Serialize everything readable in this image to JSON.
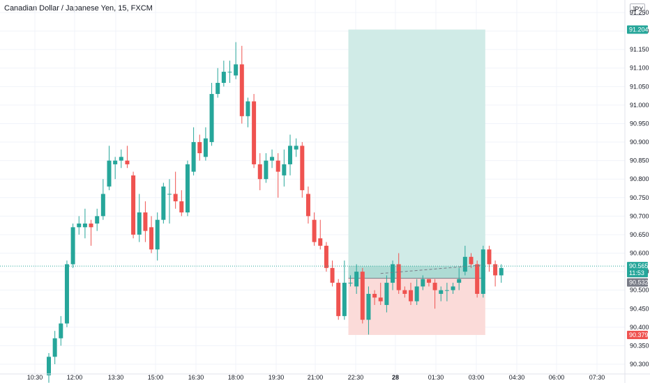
{
  "header": {
    "title": "Canadian Dollar / Japanese Yen, 15, FXCM",
    "currency": "JPY"
  },
  "colors": {
    "up": "#26a69a",
    "down": "#ef5350",
    "profit_zone": "#cdeae6",
    "loss_zone": "#fbd9d7",
    "current_price": "#26a69a",
    "axis_text": "#131722"
  },
  "chart_data": {
    "type": "candlestick",
    "title": "Canadian Dollar / Japanese Yen, 15, FXCM",
    "xlabel": "",
    "ylabel": "",
    "ylim": [
      90.285,
      91.27
    ],
    "y_ticks": [
      "90.300",
      "90.350",
      "90.400",
      "90.450",
      "90.500",
      "90.550",
      "90.600",
      "90.650",
      "90.700",
      "90.750",
      "90.800",
      "90.850",
      "90.900",
      "90.950",
      "91.000",
      "91.050",
      "91.100",
      "91.150",
      "91.200",
      "91.250"
    ],
    "x_tick_labels": [
      "10:30",
      "12:00",
      "13:30",
      "15:00",
      "16:30",
      "18:00",
      "19:30",
      "21:00",
      "22:30",
      "28",
      "01:30",
      "03:00",
      "04:30",
      "06:00",
      "07:30"
    ],
    "grid": true,
    "candles": [
      {
        "o": 90.27,
        "h": 90.33,
        "l": 90.25,
        "c": 90.32
      },
      {
        "o": 90.32,
        "h": 90.39,
        "l": 90.3,
        "c": 90.37
      },
      {
        "o": 90.37,
        "h": 90.43,
        "l": 90.35,
        "c": 90.41
      },
      {
        "o": 90.41,
        "h": 90.58,
        "l": 90.4,
        "c": 90.57
      },
      {
        "o": 90.57,
        "h": 90.68,
        "l": 90.56,
        "c": 90.67
      },
      {
        "o": 90.67,
        "h": 90.7,
        "l": 90.65,
        "c": 90.68
      },
      {
        "o": 90.67,
        "h": 90.72,
        "l": 90.64,
        "c": 90.68
      },
      {
        "o": 90.68,
        "h": 90.69,
        "l": 90.62,
        "c": 90.67
      },
      {
        "o": 90.68,
        "h": 90.72,
        "l": 90.66,
        "c": 90.7
      },
      {
        "o": 90.7,
        "h": 90.8,
        "l": 90.69,
        "c": 90.76
      },
      {
        "o": 90.78,
        "h": 90.89,
        "l": 90.77,
        "c": 90.85
      },
      {
        "o": 90.84,
        "h": 90.86,
        "l": 90.8,
        "c": 90.85
      },
      {
        "o": 90.85,
        "h": 90.88,
        "l": 90.83,
        "c": 90.86
      },
      {
        "o": 90.85,
        "h": 90.89,
        "l": 90.83,
        "c": 90.84
      },
      {
        "o": 90.81,
        "h": 90.82,
        "l": 90.64,
        "c": 90.65
      },
      {
        "o": 90.65,
        "h": 90.76,
        "l": 90.63,
        "c": 90.71
      },
      {
        "o": 90.71,
        "h": 90.74,
        "l": 90.63,
        "c": 90.66
      },
      {
        "o": 90.67,
        "h": 90.7,
        "l": 90.6,
        "c": 90.61
      },
      {
        "o": 90.61,
        "h": 90.71,
        "l": 90.58,
        "c": 90.69
      },
      {
        "o": 90.69,
        "h": 90.79,
        "l": 90.68,
        "c": 90.78
      },
      {
        "o": 90.76,
        "h": 90.8,
        "l": 90.68,
        "c": 90.76
      },
      {
        "o": 90.76,
        "h": 90.82,
        "l": 90.72,
        "c": 90.74
      },
      {
        "o": 90.74,
        "h": 90.77,
        "l": 90.7,
        "c": 90.71
      },
      {
        "o": 90.71,
        "h": 90.85,
        "l": 90.7,
        "c": 90.84
      },
      {
        "o": 90.82,
        "h": 90.94,
        "l": 90.81,
        "c": 90.9
      },
      {
        "o": 90.9,
        "h": 90.92,
        "l": 90.85,
        "c": 90.87
      },
      {
        "o": 90.86,
        "h": 90.94,
        "l": 90.85,
        "c": 90.91
      },
      {
        "o": 90.9,
        "h": 91.06,
        "l": 90.89,
        "c": 91.03
      },
      {
        "o": 91.03,
        "h": 91.1,
        "l": 91.02,
        "c": 91.06
      },
      {
        "o": 91.06,
        "h": 91.12,
        "l": 91.05,
        "c": 91.09
      },
      {
        "o": 91.09,
        "h": 91.12,
        "l": 91.06,
        "c": 91.09
      },
      {
        "o": 91.08,
        "h": 91.17,
        "l": 91.07,
        "c": 91.11
      },
      {
        "o": 91.11,
        "h": 91.16,
        "l": 90.95,
        "c": 90.97
      },
      {
        "o": 90.97,
        "h": 91.02,
        "l": 90.94,
        "c": 91.01
      },
      {
        "o": 91.01,
        "h": 91.03,
        "l": 90.83,
        "c": 90.84
      },
      {
        "o": 90.84,
        "h": 90.87,
        "l": 90.77,
        "c": 90.8
      },
      {
        "o": 90.8,
        "h": 90.87,
        "l": 90.79,
        "c": 90.85
      },
      {
        "o": 90.85,
        "h": 90.88,
        "l": 90.83,
        "c": 90.86
      },
      {
        "o": 90.85,
        "h": 90.87,
        "l": 90.75,
        "c": 90.82
      },
      {
        "o": 90.81,
        "h": 90.88,
        "l": 90.78,
        "c": 90.84
      },
      {
        "o": 90.84,
        "h": 90.92,
        "l": 90.81,
        "c": 90.89
      },
      {
        "o": 90.88,
        "h": 90.91,
        "l": 90.86,
        "c": 90.89
      },
      {
        "o": 90.89,
        "h": 90.9,
        "l": 90.75,
        "c": 90.77
      },
      {
        "o": 90.76,
        "h": 90.78,
        "l": 90.68,
        "c": 90.7
      },
      {
        "o": 90.69,
        "h": 90.71,
        "l": 90.62,
        "c": 90.63
      },
      {
        "o": 90.64,
        "h": 90.69,
        "l": 90.61,
        "c": 90.62
      },
      {
        "o": 90.62,
        "h": 90.63,
        "l": 90.55,
        "c": 90.56
      },
      {
        "o": 90.56,
        "h": 90.58,
        "l": 90.51,
        "c": 90.52
      },
      {
        "o": 90.52,
        "h": 90.53,
        "l": 90.42,
        "c": 90.43
      },
      {
        "o": 90.43,
        "h": 90.58,
        "l": 90.42,
        "c": 90.52
      },
      {
        "o": 90.52,
        "h": 90.54,
        "l": 90.51,
        "c": 90.52
      },
      {
        "o": 90.51,
        "h": 90.57,
        "l": 90.49,
        "c": 90.55
      },
      {
        "o": 90.55,
        "h": 90.56,
        "l": 90.41,
        "c": 90.42
      },
      {
        "o": 90.42,
        "h": 90.51,
        "l": 90.38,
        "c": 90.49
      },
      {
        "o": 90.49,
        "h": 90.5,
        "l": 90.46,
        "c": 90.48
      },
      {
        "o": 90.48,
        "h": 90.52,
        "l": 90.46,
        "c": 90.47
      },
      {
        "o": 90.46,
        "h": 90.54,
        "l": 90.44,
        "c": 90.52
      },
      {
        "o": 90.52,
        "h": 90.58,
        "l": 90.5,
        "c": 90.57
      },
      {
        "o": 90.57,
        "h": 90.6,
        "l": 90.49,
        "c": 90.5
      },
      {
        "o": 90.5,
        "h": 90.51,
        "l": 90.48,
        "c": 90.49
      },
      {
        "o": 90.5,
        "h": 90.52,
        "l": 90.46,
        "c": 90.47
      },
      {
        "o": 90.47,
        "h": 90.53,
        "l": 90.46,
        "c": 90.51
      },
      {
        "o": 90.51,
        "h": 90.54,
        "l": 90.5,
        "c": 90.53
      },
      {
        "o": 90.53,
        "h": 90.53,
        "l": 90.51,
        "c": 90.52
      },
      {
        "o": 90.52,
        "h": 90.53,
        "l": 90.45,
        "c": 90.5
      },
      {
        "o": 90.49,
        "h": 90.51,
        "l": 90.47,
        "c": 90.5
      },
      {
        "o": 90.5,
        "h": 90.52,
        "l": 90.47,
        "c": 90.5
      },
      {
        "o": 90.5,
        "h": 90.52,
        "l": 90.49,
        "c": 90.51
      },
      {
        "o": 90.52,
        "h": 90.56,
        "l": 90.5,
        "c": 90.53
      },
      {
        "o": 90.55,
        "h": 90.62,
        "l": 90.54,
        "c": 90.59
      },
      {
        "o": 90.59,
        "h": 90.6,
        "l": 90.56,
        "c": 90.57
      },
      {
        "o": 90.57,
        "h": 90.58,
        "l": 90.48,
        "c": 90.49
      },
      {
        "o": 90.49,
        "h": 90.62,
        "l": 90.48,
        "c": 90.61
      },
      {
        "o": 90.61,
        "h": 90.62,
        "l": 90.55,
        "c": 90.57
      },
      {
        "o": 90.57,
        "h": 90.58,
        "l": 90.51,
        "c": 90.54
      },
      {
        "o": 90.54,
        "h": 90.57,
        "l": 90.52,
        "c": 90.56
      }
    ],
    "position": {
      "type": "long",
      "entry": 90.532,
      "target": 91.204,
      "stop": 90.379,
      "start_candle": 50,
      "end_candle": 72
    },
    "price_tags": [
      {
        "price": "91.204",
        "kind": "target"
      },
      {
        "price": "90.565",
        "kind": "current",
        "sub": "11:53"
      },
      {
        "price": "90.532",
        "kind": "entry"
      },
      {
        "price": "90.379",
        "kind": "stop"
      }
    ],
    "current_price": 90.565
  }
}
